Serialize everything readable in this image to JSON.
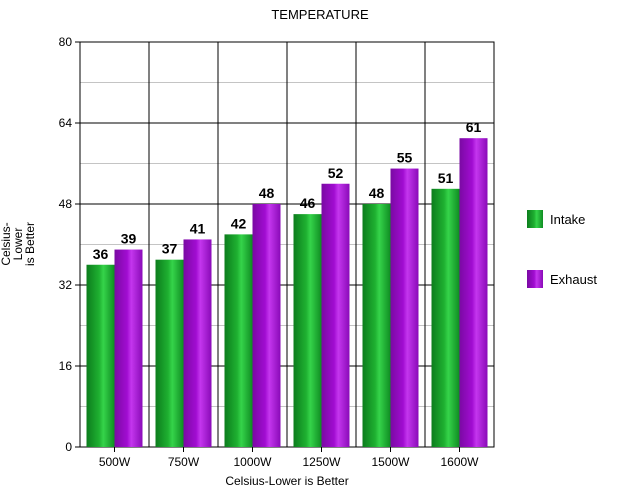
{
  "chart_data": {
    "type": "bar",
    "title": "TEMPERATURE",
    "xlabel": "Celsius-Lower is Better",
    "ylabel": [
      "Celsius-",
      "Lower",
      "is Better"
    ],
    "categories": [
      "500W",
      "750W",
      "1000W",
      "1250W",
      "1500W",
      "1600W"
    ],
    "series": [
      {
        "name": "Intake",
        "values": [
          36,
          37,
          42,
          46,
          48,
          51
        ]
      },
      {
        "name": "Exhaust",
        "values": [
          39,
          41,
          48,
          52,
          55,
          61
        ]
      }
    ],
    "ylim": [
      0,
      80
    ],
    "yticks": [
      0,
      16,
      32,
      48,
      64,
      80
    ],
    "grid": true,
    "legend_position": "right"
  },
  "colors": {
    "Intake": "#1fb031",
    "Exhaust": "#a10cd1",
    "background": "#ffffff",
    "plot_background": "#ffffff",
    "grid": "#b0b0b0"
  }
}
